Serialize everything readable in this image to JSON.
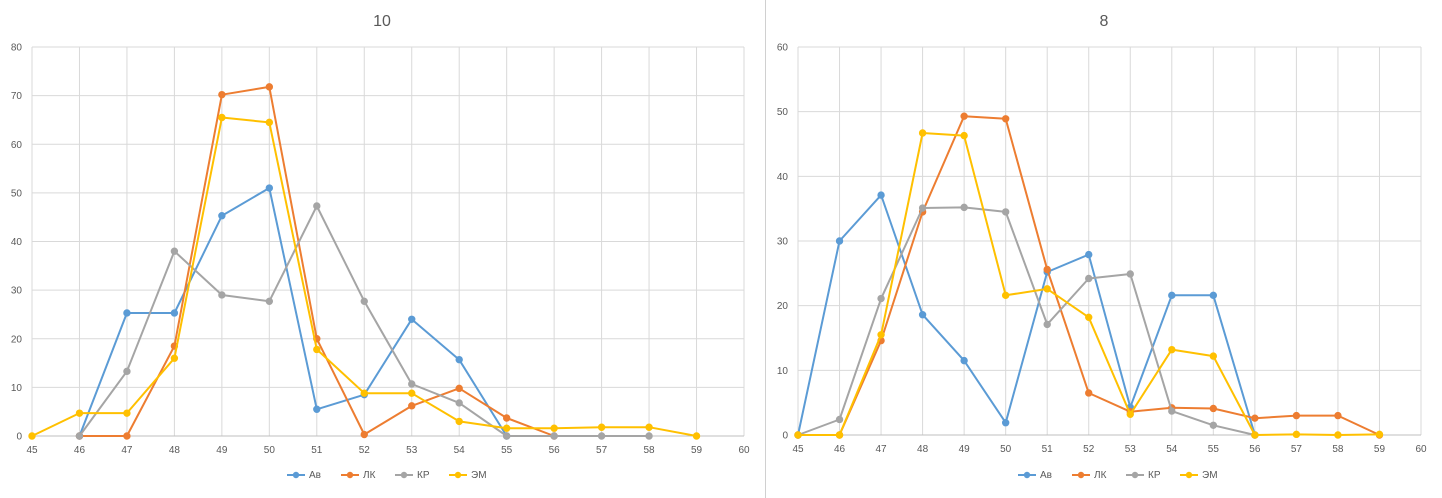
{
  "chart_data": [
    {
      "type": "line",
      "title": "10",
      "xlabel": "",
      "ylabel": "",
      "xlim": [
        45,
        60
      ],
      "ylim": [
        0,
        80
      ],
      "yticks": [
        0,
        10,
        20,
        30,
        40,
        50,
        60,
        70,
        80
      ],
      "xticks": [
        45,
        46,
        47,
        48,
        49,
        50,
        51,
        52,
        53,
        54,
        55,
        56,
        57,
        58,
        59,
        60
      ],
      "grid": true,
      "legend": "bottom",
      "series": [
        {
          "name": "Ав",
          "color": "#5B9BD5",
          "points": [
            [
              46,
              0
            ],
            [
              47,
              25.3
            ],
            [
              48,
              25.3
            ],
            [
              49,
              45.3
            ],
            [
              50,
              51
            ],
            [
              51,
              5.5
            ],
            [
              52,
              8.5
            ],
            [
              53,
              24
            ],
            [
              54,
              15.7
            ],
            [
              55,
              0
            ]
          ]
        },
        {
          "name": "ЛК",
          "color": "#ED7D31",
          "points": [
            [
              46,
              0
            ],
            [
              47,
              0
            ],
            [
              48,
              18.5
            ],
            [
              49,
              70.2
            ],
            [
              50,
              71.8
            ],
            [
              51,
              20
            ],
            [
              52,
              0.3
            ],
            [
              53,
              6.2
            ],
            [
              54,
              9.8
            ],
            [
              55,
              3.7
            ],
            [
              56,
              0
            ]
          ]
        },
        {
          "name": "КР",
          "color": "#A5A5A5",
          "points": [
            [
              46,
              0
            ],
            [
              47,
              13.3
            ],
            [
              48,
              38
            ],
            [
              49,
              29
            ],
            [
              50,
              27.7
            ],
            [
              51,
              47.3
            ],
            [
              52,
              27.7
            ],
            [
              53,
              10.7
            ],
            [
              54,
              6.8
            ],
            [
              55,
              0
            ],
            [
              56,
              0
            ],
            [
              57,
              0
            ],
            [
              58,
              0
            ]
          ]
        },
        {
          "name": "ЭМ",
          "color": "#FFC000",
          "points": [
            [
              45,
              0
            ],
            [
              46,
              4.7
            ],
            [
              47,
              4.7
            ],
            [
              48,
              16
            ],
            [
              49,
              65.5
            ],
            [
              50,
              64.5
            ],
            [
              51,
              17.8
            ],
            [
              52,
              8.8
            ],
            [
              53,
              8.8
            ],
            [
              54,
              3
            ],
            [
              55,
              1.6
            ],
            [
              56,
              1.6
            ],
            [
              57,
              1.8
            ],
            [
              58,
              1.8
            ],
            [
              59,
              0
            ]
          ]
        }
      ]
    },
    {
      "type": "line",
      "title": "8",
      "xlabel": "",
      "ylabel": "",
      "xlim": [
        45,
        60
      ],
      "ylim": [
        0,
        60
      ],
      "yticks": [
        0,
        10,
        20,
        30,
        40,
        50,
        60
      ],
      "xticks": [
        45,
        46,
        47,
        48,
        49,
        50,
        51,
        52,
        53,
        54,
        55,
        56,
        57,
        58,
        59,
        60
      ],
      "grid": true,
      "legend": "bottom",
      "series": [
        {
          "name": "Ав",
          "color": "#5B9BD5",
          "points": [
            [
              45,
              0
            ],
            [
              46,
              30
            ],
            [
              47,
              37.1
            ],
            [
              48,
              18.6
            ],
            [
              49,
              11.5
            ],
            [
              50,
              1.9
            ],
            [
              51,
              25.2
            ],
            [
              52,
              27.9
            ],
            [
              53,
              4.3
            ],
            [
              54,
              21.6
            ],
            [
              55,
              21.6
            ],
            [
              56,
              0
            ]
          ]
        },
        {
          "name": "ЛК",
          "color": "#ED7D31",
          "points": [
            [
              45,
              0
            ],
            [
              46,
              0
            ],
            [
              47,
              14.6
            ],
            [
              48,
              34.5
            ],
            [
              49,
              49.3
            ],
            [
              50,
              48.9
            ],
            [
              51,
              25.6
            ],
            [
              52,
              6.5
            ],
            [
              53,
              3.6
            ],
            [
              54,
              4.2
            ],
            [
              55,
              4.1
            ],
            [
              56,
              2.6
            ],
            [
              57,
              3
            ],
            [
              58,
              3
            ],
            [
              59,
              0
            ]
          ]
        },
        {
          "name": "КР",
          "color": "#A5A5A5",
          "points": [
            [
              45,
              0
            ],
            [
              46,
              2.4
            ],
            [
              47,
              21.1
            ],
            [
              48,
              35.1
            ],
            [
              49,
              35.2
            ],
            [
              50,
              34.5
            ],
            [
              51,
              17.1
            ],
            [
              52,
              24.2
            ],
            [
              53,
              24.9
            ],
            [
              54,
              3.7
            ],
            [
              55,
              1.5
            ],
            [
              56,
              0
            ]
          ]
        },
        {
          "name": "ЭМ",
          "color": "#FFC000",
          "points": [
            [
              45,
              0
            ],
            [
              46,
              0
            ],
            [
              47,
              15.5
            ],
            [
              48,
              46.7
            ],
            [
              49,
              46.3
            ],
            [
              50,
              21.6
            ],
            [
              51,
              22.6
            ],
            [
              52,
              18.2
            ],
            [
              53,
              3.2
            ],
            [
              54,
              13.2
            ],
            [
              55,
              12.2
            ],
            [
              56,
              0
            ],
            [
              57,
              0.1
            ],
            [
              58,
              0
            ],
            [
              59,
              0.1
            ]
          ]
        }
      ]
    }
  ]
}
